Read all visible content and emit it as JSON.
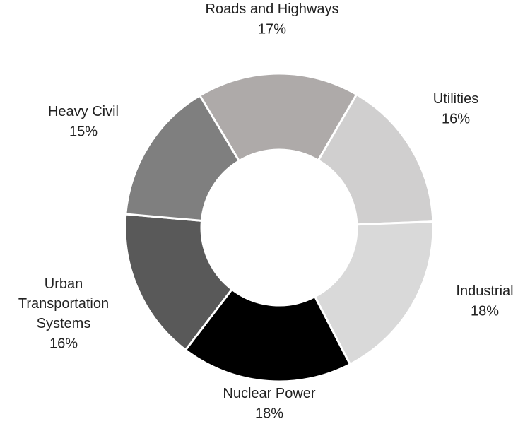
{
  "chart_data": {
    "type": "donut",
    "categories": [
      "Roads and Highways",
      "Utilities",
      "Industrial",
      "Nuclear Power",
      "Urban Transportation Systems",
      "Heavy Civil"
    ],
    "values": [
      17,
      16,
      18,
      18,
      16,
      15
    ],
    "value_labels": [
      "17%",
      "16%",
      "18%",
      "18%",
      "16%",
      "15%"
    ],
    "colors": [
      "#aeaaa9",
      "#d0cfcf",
      "#d9d9d9",
      "#000000",
      "#595959",
      "#7f7f7f"
    ]
  }
}
